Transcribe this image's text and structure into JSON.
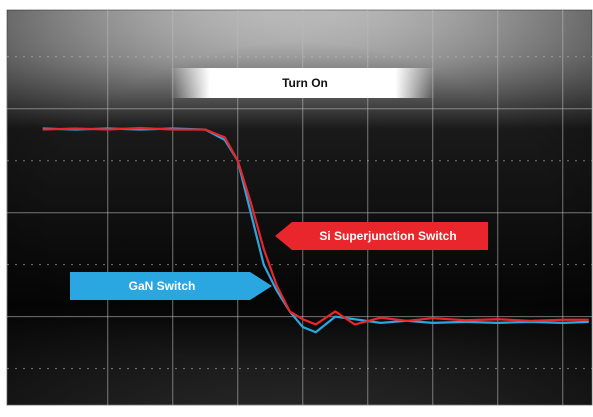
{
  "chart_data": {
    "type": "line",
    "title": "Turn On",
    "annotations": [
      "Si Superjunction Switch",
      "GaN Switch"
    ],
    "xlim": [
      -0.55,
      8.45
    ],
    "ylim": [
      -0.7,
      6.9
    ],
    "xticks": [
      1,
      2,
      3,
      4,
      5,
      6,
      7,
      8
    ],
    "yticks": [
      0,
      1,
      2,
      3,
      4,
      5,
      6
    ],
    "grid": true,
    "series": [
      {
        "name": "Si Superjunction Switch",
        "color": "#e8262b",
        "x": [
          0,
          0.5,
          1,
          1.5,
          2,
          2.5,
          2.8,
          3.0,
          3.2,
          3.4,
          3.6,
          3.8,
          4.0,
          4.2,
          4.5,
          4.8,
          5.2,
          5.6,
          6,
          6.5,
          7,
          7.5,
          8,
          8.4
        ],
        "values": [
          4.6,
          4.62,
          4.6,
          4.63,
          4.6,
          4.6,
          4.45,
          4.0,
          3.2,
          2.3,
          1.6,
          1.1,
          0.95,
          0.85,
          1.1,
          0.85,
          0.98,
          0.92,
          0.97,
          0.93,
          0.95,
          0.92,
          0.94,
          0.94
        ]
      },
      {
        "name": "GaN Switch",
        "color": "#2aa7e0",
        "x": [
          0,
          0.5,
          1,
          1.5,
          2,
          2.5,
          2.8,
          3.0,
          3.2,
          3.4,
          3.6,
          3.8,
          4.0,
          4.2,
          4.5,
          4.8,
          5.2,
          5.6,
          6,
          6.5,
          7,
          7.5,
          8,
          8.4
        ],
        "values": [
          4.62,
          4.6,
          4.62,
          4.6,
          4.62,
          4.6,
          4.4,
          4.0,
          3.0,
          2.0,
          1.5,
          1.1,
          0.8,
          0.7,
          1.0,
          0.95,
          0.88,
          0.92,
          0.88,
          0.9,
          0.88,
          0.9,
          0.88,
          0.9
        ]
      }
    ]
  }
}
